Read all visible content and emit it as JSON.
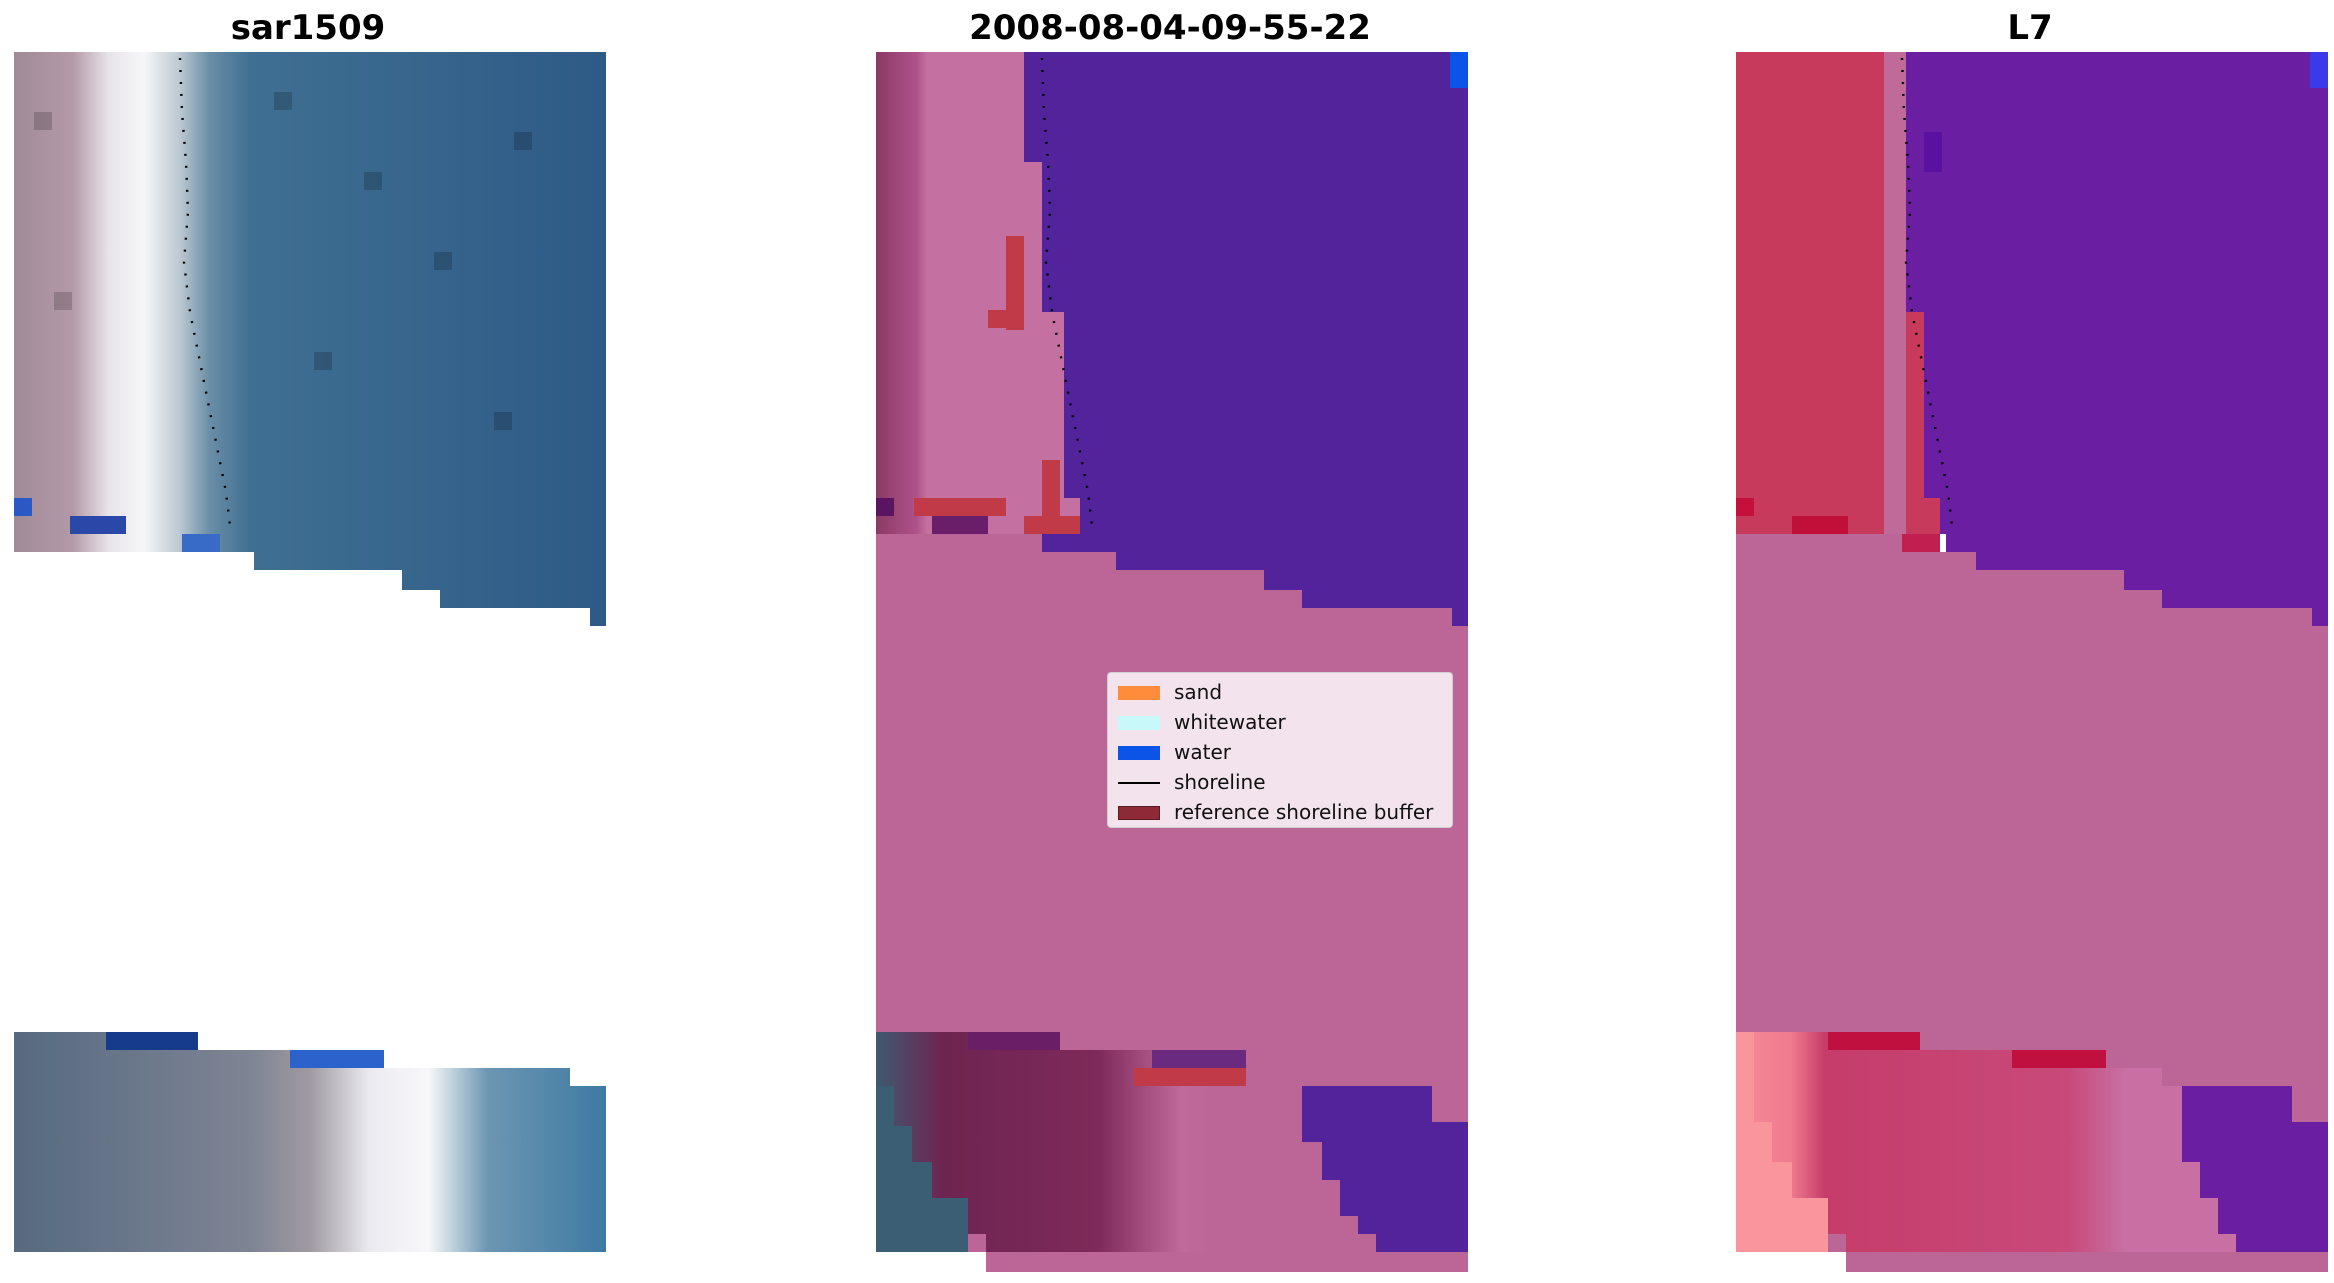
{
  "titles": {
    "panel1": "sar1509",
    "panel2": "2008-08-04-09-55-22",
    "panel3": "L7"
  },
  "legend": {
    "items": [
      {
        "label": "sand",
        "color": "#ff8c3a",
        "kind": "patch"
      },
      {
        "label": "whitewater",
        "color": "#c8f8fa",
        "kind": "patch"
      },
      {
        "label": "water",
        "color": "#0c54e8",
        "kind": "patch"
      },
      {
        "label": "shoreline",
        "color": "#000000",
        "kind": "line"
      },
      {
        "label": "reference shoreline buffer",
        "color": "#8e2a38",
        "kind": "patch"
      }
    ]
  },
  "colors": {
    "pink_overlay": "#bb6696",
    "purple_water": "#52239a",
    "purple_water_l7": "#6a1ea2",
    "sea_blue": "#2f5c8c",
    "sand_red": "#c83a5c",
    "buffer_red": "#c03a48"
  }
}
